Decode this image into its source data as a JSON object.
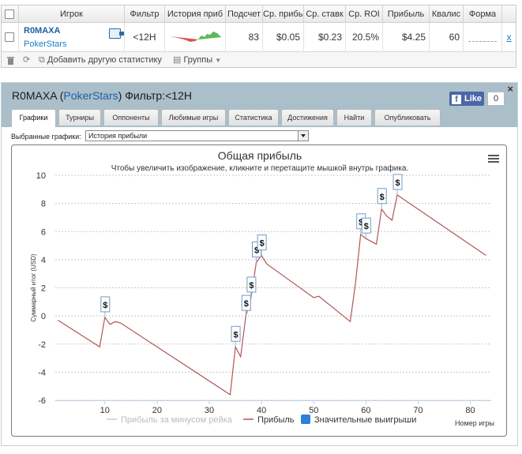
{
  "table": {
    "headers": [
      "Игрок",
      "Фильтр",
      "История приб",
      "Подсчет",
      "Ср. прибы",
      "Ср. ставк",
      "Ср. ROI",
      "Прибыль",
      "Квалис",
      "Форма"
    ],
    "row": {
      "player": "R0MAXA",
      "site": "PokerStars",
      "filter": "<12H",
      "count": "83",
      "avg_profit": "$0.05",
      "avg_stake": "$0.23",
      "avg_roi": "20.5%",
      "profit": "$4.25",
      "qual": "60",
      "remove": "x"
    },
    "toolbar": {
      "add_label": "Добавить другую статистику",
      "groups_label": "Группы"
    }
  },
  "panel": {
    "player": "R0MAXA",
    "site": "PokerStars",
    "filter_label": "Фильтр:<12H",
    "fb_like": "Like",
    "fb_count": "0",
    "close": "×",
    "tabs": [
      {
        "label": "Графики",
        "active": true
      },
      {
        "label": "Турниры"
      },
      {
        "label": "Оппоненты"
      },
      {
        "label": "Любимые игры"
      },
      {
        "label": "Статистика"
      },
      {
        "label": "Достижения"
      },
      {
        "label": "Найти"
      },
      {
        "label": "Опубликовать"
      }
    ],
    "select_label": "Выбранные графики:",
    "select_value": "История прибыли"
  },
  "chart_data": {
    "type": "line",
    "title": "Общая прибыль",
    "subtitle": "Чтобы увеличить изображение, кликните и перетащите мышкой внутрь графика.",
    "xlabel": "Номер игры",
    "ylabel": "Суммарный итог (USD)",
    "xlim": [
      0.5,
      84
    ],
    "ylim": [
      -6,
      10
    ],
    "x_ticks": [
      10,
      20,
      30,
      40,
      50,
      60,
      70,
      80
    ],
    "y_ticks": [
      -6,
      -4,
      -2,
      0,
      2,
      4,
      6,
      8,
      10
    ],
    "grid": true,
    "legend_position": "bottom",
    "series": [
      {
        "name": "Прибыль за минусом рейка",
        "color": "#cccccc",
        "hidden": true,
        "values": []
      },
      {
        "name": "Прибыль",
        "color": "#b35555",
        "points": [
          [
            1,
            -0.3
          ],
          [
            9,
            -2.2
          ],
          [
            10,
            -0.1
          ],
          [
            11,
            -0.6
          ],
          [
            12,
            -0.4
          ],
          [
            13,
            -0.5
          ],
          [
            34,
            -5.6
          ],
          [
            35,
            -2.2
          ],
          [
            36,
            -2.9
          ],
          [
            37,
            0.0
          ],
          [
            38,
            1.3
          ],
          [
            39,
            3.8
          ],
          [
            40,
            4.3
          ],
          [
            41,
            3.7
          ],
          [
            50,
            1.3
          ],
          [
            51,
            1.4
          ],
          [
            57,
            -0.4
          ],
          [
            58,
            2.3
          ],
          [
            59,
            5.8
          ],
          [
            60,
            5.5
          ],
          [
            61,
            5.3
          ],
          [
            62,
            5.1
          ],
          [
            63,
            7.6
          ],
          [
            64,
            7.1
          ],
          [
            65,
            6.8
          ],
          [
            66,
            8.6
          ],
          [
            83,
            4.3
          ]
        ]
      }
    ],
    "big_wins": {
      "name": "Значительные выигрыши",
      "color": "#2f7ed8",
      "symbol": "$",
      "points": [
        [
          10,
          -0.1
        ],
        [
          35,
          -2.2
        ],
        [
          37,
          0.0
        ],
        [
          38,
          1.3
        ],
        [
          39,
          3.8
        ],
        [
          40,
          4.3
        ],
        [
          59,
          5.8
        ],
        [
          60,
          5.5
        ],
        [
          63,
          7.6
        ],
        [
          66,
          8.6
        ]
      ]
    }
  }
}
